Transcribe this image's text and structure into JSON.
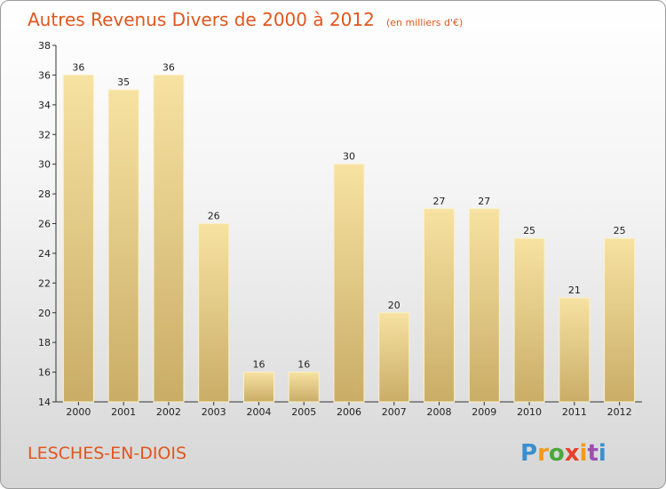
{
  "title": "Autres Revenus Divers de 2000 à 2012",
  "subtitle": "(en milliers d'€)",
  "commune": "LESCHES-EN-DIOIS",
  "logo": {
    "text": "Proxiti",
    "colors": [
      "#3a8fd0",
      "#f29a1c",
      "#4aa83c",
      "#e8402a",
      "#f29a1c",
      "#9c4fb0",
      "#3a8fd0"
    ]
  },
  "colors": {
    "title": "#e0561e",
    "bar_light": "#f7e2a2",
    "bar_dark": "#c9ad67"
  },
  "chart_data": {
    "type": "bar",
    "categories": [
      "2000",
      "2001",
      "2002",
      "2003",
      "2004",
      "2005",
      "2006",
      "2007",
      "2008",
      "2009",
      "2010",
      "2011",
      "2012"
    ],
    "values": [
      36,
      35,
      36,
      26,
      16,
      16,
      30,
      20,
      27,
      27,
      25,
      21,
      25
    ],
    "value_labels": [
      "36",
      "35",
      "36",
      "26",
      "16",
      "16",
      "30",
      "20",
      "27",
      "27",
      "25",
      "21",
      "25"
    ],
    "ylim": [
      14,
      38
    ],
    "yticks": [
      14,
      16,
      18,
      20,
      22,
      24,
      26,
      28,
      30,
      32,
      34,
      36,
      38
    ],
    "ytick_labels": [
      "14",
      "16",
      "18",
      "20",
      "22",
      "24",
      "26",
      "28",
      "30",
      "32",
      "34",
      "36",
      "38"
    ],
    "grid": false,
    "legend": "none"
  }
}
